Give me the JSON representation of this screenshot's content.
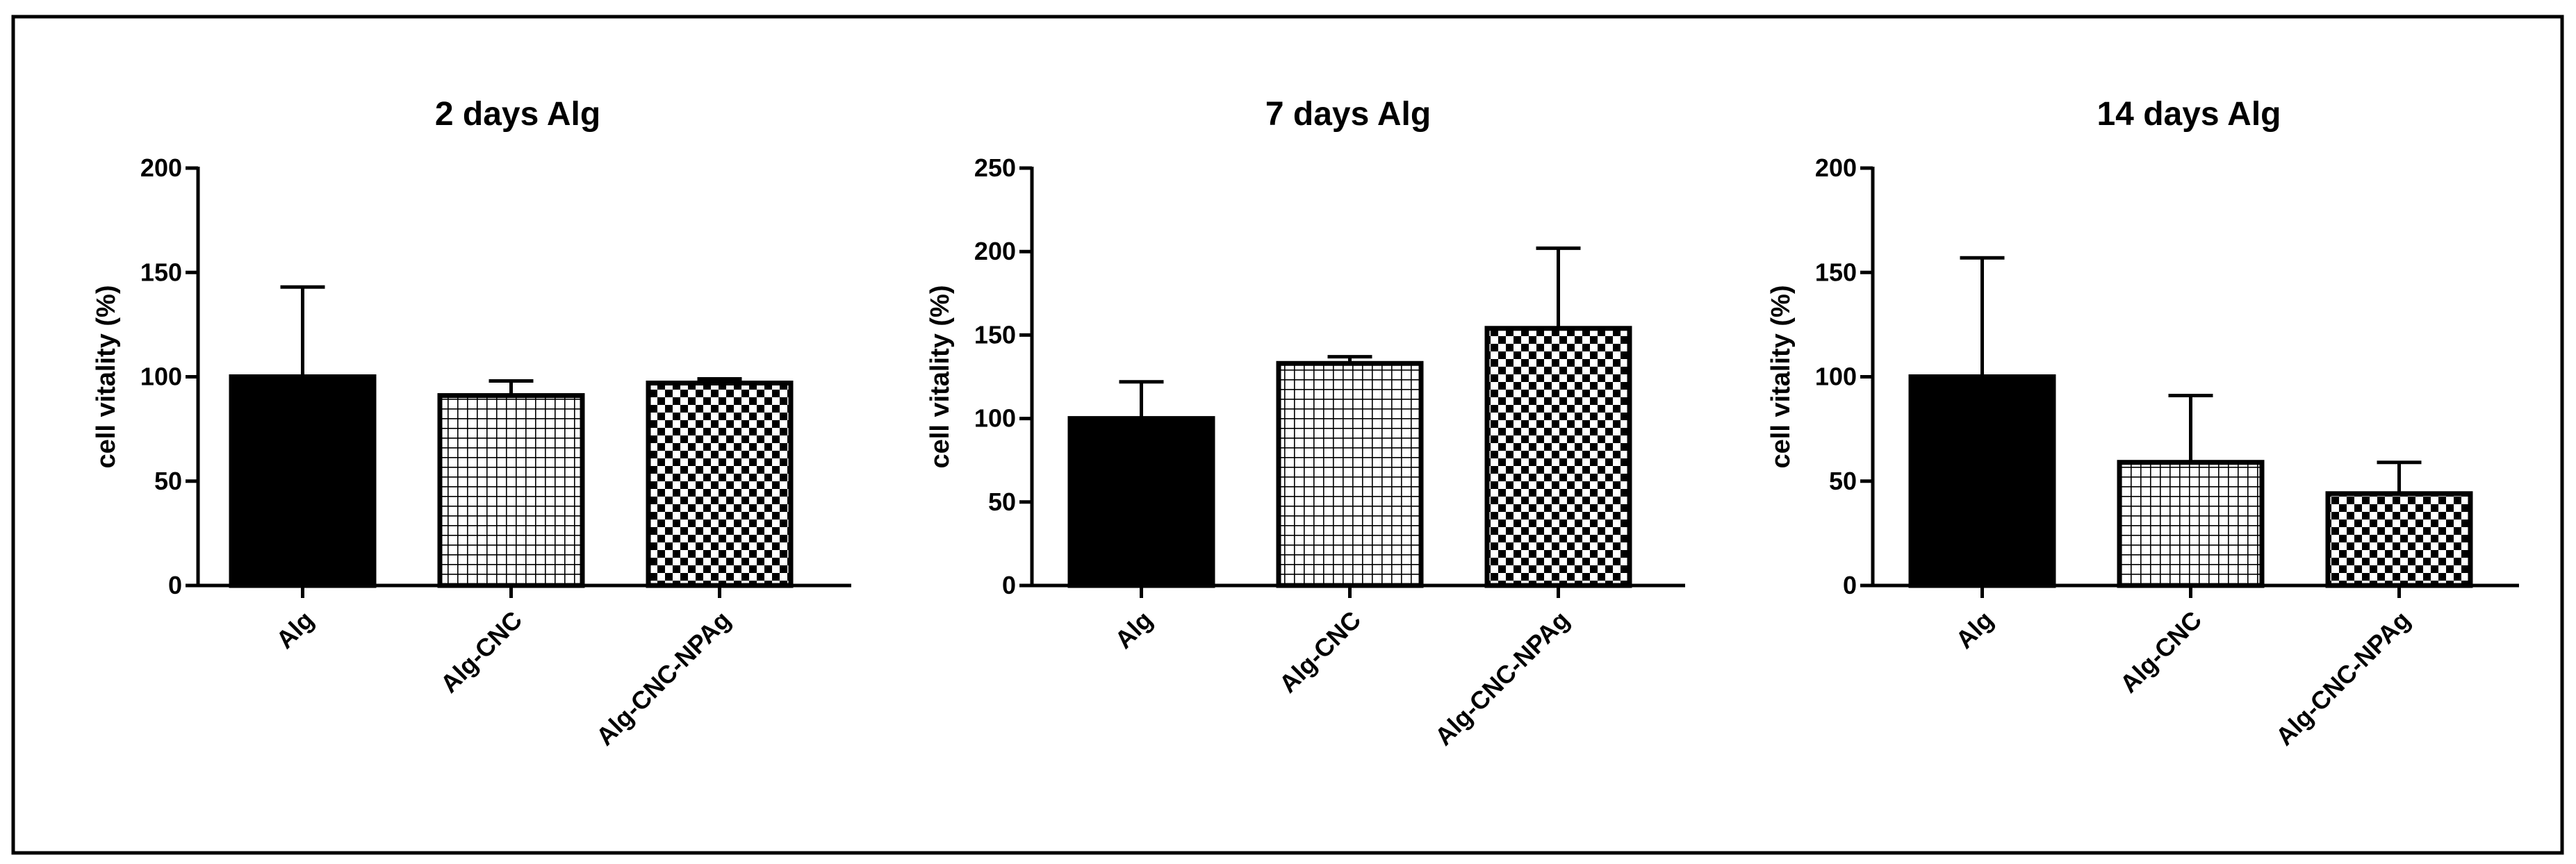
{
  "chart_data": [
    {
      "type": "bar",
      "title": "2 days Alg",
      "ylabel": "cell vitality (%)",
      "xlabel": "",
      "categories": [
        "Alg",
        "Alg-CNC",
        "Alg-CNC-NPAg"
      ],
      "values": [
        100,
        91,
        97
      ],
      "errors": [
        43,
        7,
        2
      ],
      "ylim": [
        0,
        200
      ],
      "yticks": [
        0,
        50,
        100,
        150,
        200
      ],
      "fills": [
        "solid-black",
        "grid",
        "checker"
      ],
      "grid": false,
      "legend": "none"
    },
    {
      "type": "bar",
      "title": "7 days Alg",
      "ylabel": "cell vitality (%)",
      "xlabel": "",
      "categories": [
        "Alg",
        "Alg-CNC",
        "Alg-CNC-NPAg"
      ],
      "values": [
        100,
        133,
        154
      ],
      "errors": [
        22,
        4,
        48
      ],
      "ylim": [
        0,
        250
      ],
      "yticks": [
        0,
        50,
        100,
        150,
        200,
        250
      ],
      "fills": [
        "solid-black",
        "grid",
        "checker"
      ],
      "grid": false,
      "legend": "none"
    },
    {
      "type": "bar",
      "title": "14 days Alg",
      "ylabel": "cell vitality (%)",
      "xlabel": "",
      "categories": [
        "Alg",
        "Alg-CNC",
        "Alg-CNC-NPAg"
      ],
      "values": [
        100,
        59,
        44
      ],
      "errors": [
        57,
        32,
        15
      ],
      "ylim": [
        0,
        200
      ],
      "yticks": [
        0,
        50,
        100,
        150,
        200
      ],
      "fills": [
        "solid-black",
        "grid",
        "checker"
      ],
      "grid": false,
      "legend": "none"
    }
  ]
}
